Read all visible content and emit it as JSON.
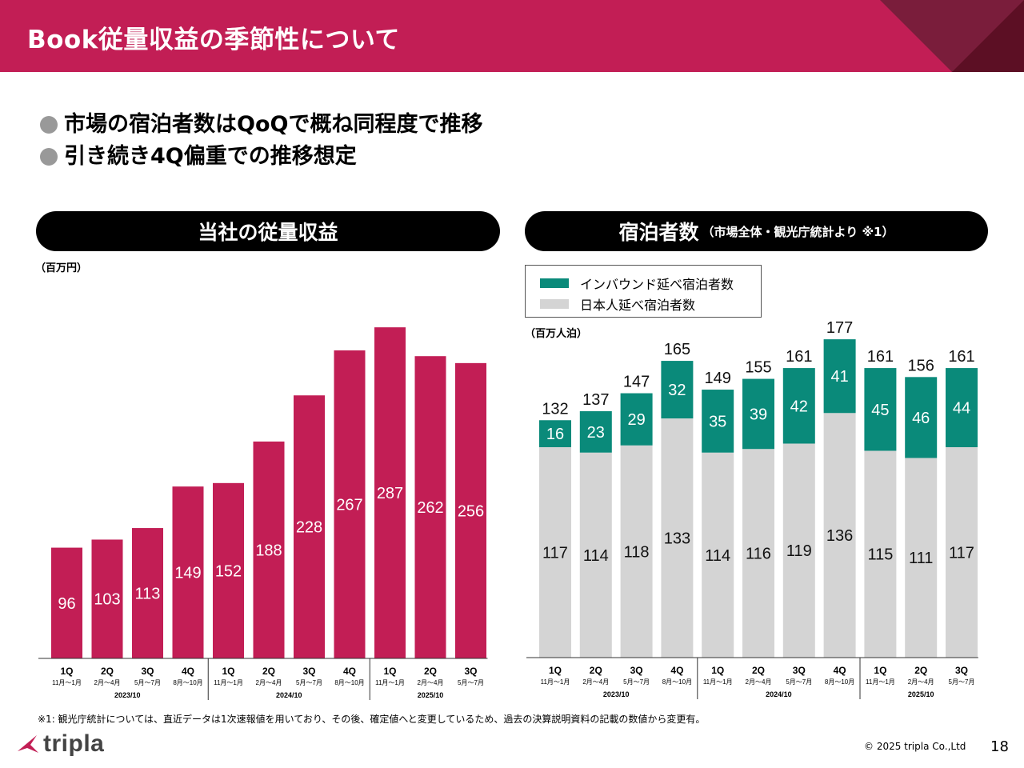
{
  "header": {
    "title": "Book従量収益の季節性について"
  },
  "bullets": [
    "市場の宿泊者数はQoQで概ね同程度で推移",
    "引き続き4Q偏重での推移想定"
  ],
  "left_chart": {
    "pill": "当社の従量収益",
    "unit": "（百万円）"
  },
  "right_chart": {
    "pill": "宿泊者数",
    "pill_note": "（市場全体・観光庁統計より ※1）",
    "unit": "（百万人泊）"
  },
  "legend": {
    "inbound": "インバウンド延べ宿泊者数",
    "japanese": "日本人延べ宿泊者数"
  },
  "colors": {
    "brand": "#c21e55",
    "inbound": "#0a8a7a",
    "japanese": "#d4d4d4"
  },
  "footnote": "※1: 観光庁統計については、直近データは1次速報値を用いており、その後、確定値へと変更しているため、過去の決算説明資料の記載の数値から変更有。",
  "copyright": "© 2025 tripla Co.,Ltd",
  "page_number": "18",
  "logo": {
    "text": "tripla"
  },
  "chart_data": [
    {
      "type": "bar",
      "ylabel": "（百万円）",
      "categories": [
        "1Q",
        "2Q",
        "3Q",
        "4Q",
        "1Q",
        "2Q",
        "3Q",
        "4Q",
        "1Q",
        "2Q",
        "3Q"
      ],
      "sublabels": [
        "11月～1月",
        "2月～4月",
        "5月～7月",
        "8月～10月",
        "11月～1月",
        "2月～4月",
        "5月～7月",
        "8月～10月",
        "11月～1月",
        "2月～4月",
        "5月～7月"
      ],
      "groups": [
        {
          "label": "2023/10",
          "count": 4
        },
        {
          "label": "2024/10",
          "count": 4
        },
        {
          "label": "2025/10",
          "count": 3
        }
      ],
      "values": [
        96,
        103,
        113,
        149,
        152,
        188,
        228,
        267,
        287,
        262,
        256
      ]
    },
    {
      "type": "bar",
      "stacked": true,
      "ylabel": "（百万人泊）",
      "categories": [
        "1Q",
        "2Q",
        "3Q",
        "4Q",
        "1Q",
        "2Q",
        "3Q",
        "4Q",
        "1Q",
        "2Q",
        "3Q"
      ],
      "sublabels": [
        "11月～1月",
        "2月～4月",
        "5月～7月",
        "8月～10月",
        "11月～1月",
        "2月～4月",
        "5月～7月",
        "8月～10月",
        "11月～1月",
        "2月～4月",
        "5月～7月"
      ],
      "groups": [
        {
          "label": "2023/10",
          "count": 4
        },
        {
          "label": "2024/10",
          "count": 4
        },
        {
          "label": "2025/10",
          "count": 3
        }
      ],
      "series": [
        {
          "name": "日本人延べ宿泊者数",
          "values": [
            117,
            114,
            118,
            133,
            114,
            116,
            119,
            136,
            115,
            111,
            117
          ]
        },
        {
          "name": "インバウンド延べ宿泊者数",
          "values": [
            16,
            23,
            29,
            32,
            35,
            39,
            42,
            41,
            45,
            46,
            44
          ]
        }
      ],
      "totals": [
        132,
        137,
        147,
        165,
        149,
        155,
        161,
        177,
        161,
        156,
        161
      ]
    }
  ]
}
